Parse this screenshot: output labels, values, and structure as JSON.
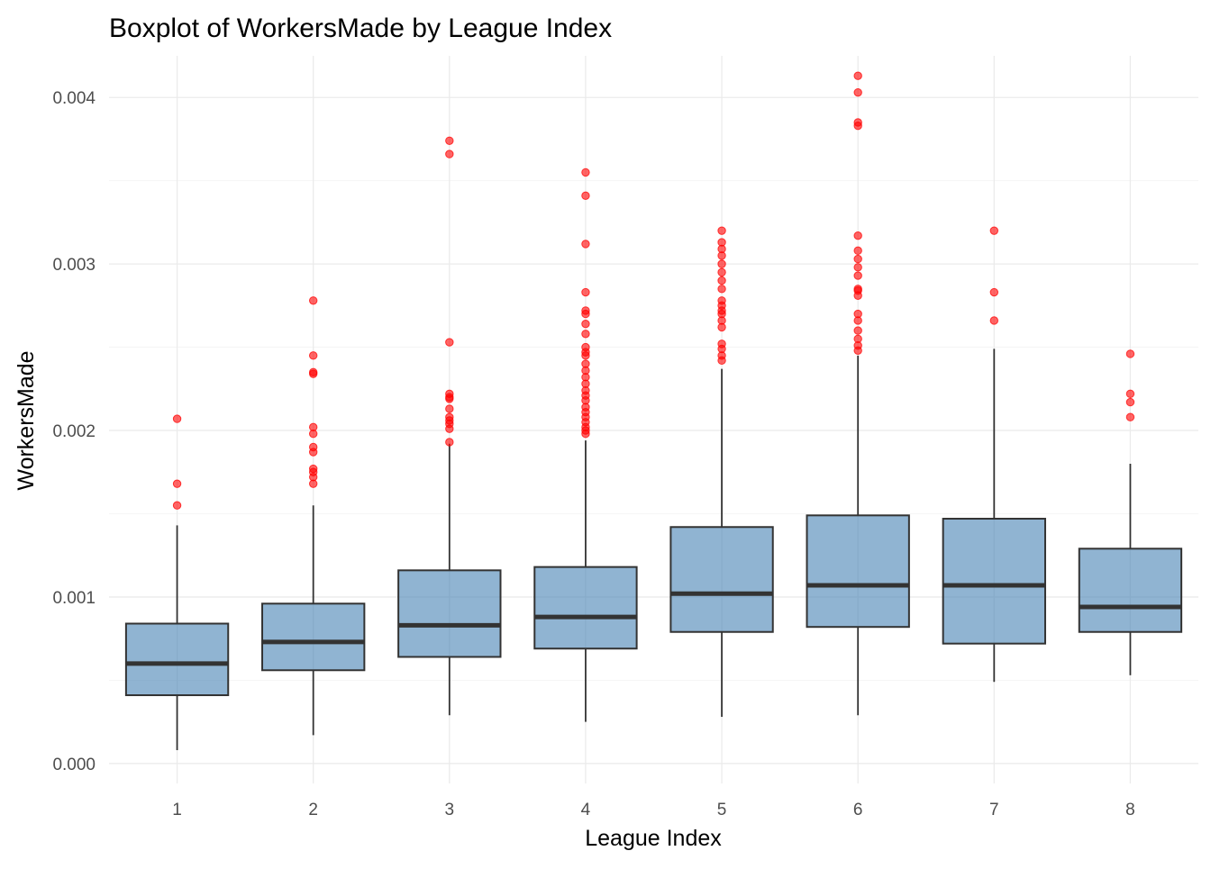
{
  "chart_data": {
    "type": "boxplot",
    "title": "Boxplot of WorkersMade by League Index",
    "xlabel": "League Index",
    "ylabel": "WorkersMade",
    "categories": [
      "1",
      "2",
      "3",
      "4",
      "5",
      "6",
      "7",
      "8"
    ],
    "y_ticks": [
      "0.000",
      "0.001",
      "0.002",
      "0.003",
      "0.004"
    ],
    "y_tick_values": [
      0,
      0.001,
      0.002,
      0.003,
      0.004
    ],
    "ylim": [
      -0.00012,
      0.00425
    ],
    "grid": true,
    "box_color": "#4682b4",
    "outlier_color": "#ff0000",
    "boxes": [
      {
        "league": "1",
        "whisker_low": 8e-05,
        "q1": 0.00041,
        "median": 0.0006,
        "q3": 0.00084,
        "whisker_high": 0.00143,
        "outliers": [
          0.00155,
          0.00168,
          0.00207
        ]
      },
      {
        "league": "2",
        "whisker_low": 0.00017,
        "q1": 0.00056,
        "median": 0.00073,
        "q3": 0.00096,
        "whisker_high": 0.00155,
        "outliers": [
          0.00168,
          0.00172,
          0.00175,
          0.00177,
          0.00187,
          0.0019,
          0.00198,
          0.00202,
          0.00234,
          0.00235,
          0.00245,
          0.00278
        ]
      },
      {
        "league": "3",
        "whisker_low": 0.00029,
        "q1": 0.00064,
        "median": 0.00083,
        "q3": 0.00116,
        "whisker_high": 0.00192,
        "outliers": [
          0.00193,
          0.00201,
          0.00204,
          0.00206,
          0.00208,
          0.00213,
          0.00219,
          0.0022,
          0.00222,
          0.00253,
          0.00366,
          0.00374
        ]
      },
      {
        "league": "4",
        "whisker_low": 0.00025,
        "q1": 0.00069,
        "median": 0.00088,
        "q3": 0.00118,
        "whisker_high": 0.00194,
        "outliers": [
          0.00198,
          0.002,
          0.00202,
          0.00205,
          0.00208,
          0.00211,
          0.00214,
          0.00218,
          0.00221,
          0.00224,
          0.00228,
          0.00232,
          0.00236,
          0.0024,
          0.00245,
          0.00247,
          0.0025,
          0.00258,
          0.00264,
          0.0027,
          0.00272,
          0.00283,
          0.00312,
          0.00341,
          0.00355
        ]
      },
      {
        "league": "5",
        "whisker_low": 0.00028,
        "q1": 0.00079,
        "median": 0.00102,
        "q3": 0.00142,
        "whisker_high": 0.00237,
        "outliers": [
          0.00242,
          0.00245,
          0.00249,
          0.00252,
          0.00262,
          0.00266,
          0.0027,
          0.00272,
          0.00275,
          0.00278,
          0.00285,
          0.0029,
          0.00295,
          0.003,
          0.00305,
          0.00309,
          0.00313,
          0.0032
        ]
      },
      {
        "league": "6",
        "whisker_low": 0.00029,
        "q1": 0.00082,
        "median": 0.00107,
        "q3": 0.00149,
        "whisker_high": 0.00245,
        "outliers": [
          0.00248,
          0.00251,
          0.00255,
          0.0026,
          0.00266,
          0.0027,
          0.00281,
          0.00284,
          0.00285,
          0.00293,
          0.00298,
          0.00303,
          0.00308,
          0.00317,
          0.00383,
          0.00385,
          0.00403,
          0.00413
        ]
      },
      {
        "league": "7",
        "whisker_low": 0.00049,
        "q1": 0.00072,
        "median": 0.00107,
        "q3": 0.00147,
        "whisker_high": 0.00249,
        "outliers": [
          0.00266,
          0.00283,
          0.0032
        ]
      },
      {
        "league": "8",
        "whisker_low": 0.00053,
        "q1": 0.00079,
        "median": 0.00094,
        "q3": 0.00129,
        "whisker_high": 0.0018,
        "outliers": [
          0.00208,
          0.00217,
          0.00222,
          0.00246
        ]
      }
    ]
  }
}
